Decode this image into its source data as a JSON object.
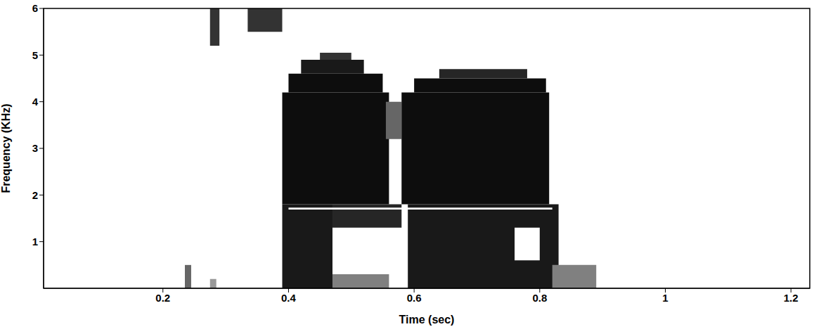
{
  "chart_data": {
    "type": "spectrogram",
    "x_label": "Time (sec)",
    "y_label": "Frequency (KHz)",
    "xlim": [
      0.01,
      1.23
    ],
    "ylim": [
      0,
      6
    ],
    "xticks": [
      0.2,
      0.4,
      0.6,
      0.8,
      1,
      1.2
    ],
    "yticks": [
      1,
      2,
      3,
      4,
      5,
      6
    ],
    "cells": [
      {
        "t": [
          0.275,
          0.29
        ],
        "f": [
          5.2,
          6
        ],
        "level": 0.8
      },
      {
        "t": [
          0.335,
          0.39
        ],
        "f": [
          5.5,
          6
        ],
        "level": 0.8
      },
      {
        "t": [
          0.235,
          0.245
        ],
        "f": [
          0,
          0.5
        ],
        "level": 0.6
      },
      {
        "t": [
          0.275,
          0.285
        ],
        "f": [
          0,
          0.2
        ],
        "level": 0.4
      },
      {
        "t": [
          0.39,
          0.56
        ],
        "f": [
          1.8,
          4.2
        ],
        "level": 0.95
      },
      {
        "t": [
          0.4,
          0.55
        ],
        "f": [
          4.2,
          4.6
        ],
        "level": 0.95
      },
      {
        "t": [
          0.42,
          0.52
        ],
        "f": [
          4.6,
          4.9
        ],
        "level": 0.9
      },
      {
        "t": [
          0.45,
          0.5
        ],
        "f": [
          4.9,
          5.05
        ],
        "level": 0.8
      },
      {
        "t": [
          0.555,
          0.58
        ],
        "f": [
          3.2,
          4.0
        ],
        "level": 0.6
      },
      {
        "t": [
          0.58,
          0.815
        ],
        "f": [
          1.8,
          4.2
        ],
        "level": 0.95
      },
      {
        "t": [
          0.6,
          0.81
        ],
        "f": [
          4.2,
          4.5
        ],
        "level": 0.95
      },
      {
        "t": [
          0.64,
          0.78
        ],
        "f": [
          4.5,
          4.7
        ],
        "level": 0.85
      },
      {
        "t": [
          0.39,
          0.47
        ],
        "f": [
          0,
          1.8
        ],
        "level": 0.9
      },
      {
        "t": [
          0.47,
          0.58
        ],
        "f": [
          1.3,
          1.8
        ],
        "level": 0.85
      },
      {
        "t": [
          0.47,
          0.56
        ],
        "f": [
          0,
          0.3
        ],
        "level": 0.5
      },
      {
        "t": [
          0.59,
          0.83
        ],
        "f": [
          0,
          1.8
        ],
        "level": 0.9
      },
      {
        "t": [
          0.76,
          0.8
        ],
        "f": [
          0.6,
          1.3
        ],
        "level": 0
      },
      {
        "t": [
          0.82,
          0.89
        ],
        "f": [
          0,
          0.5
        ],
        "level": 0.5
      },
      {
        "t": [
          0.4,
          0.82
        ],
        "f": [
          1.69,
          1.73
        ],
        "level": 0
      }
    ]
  }
}
